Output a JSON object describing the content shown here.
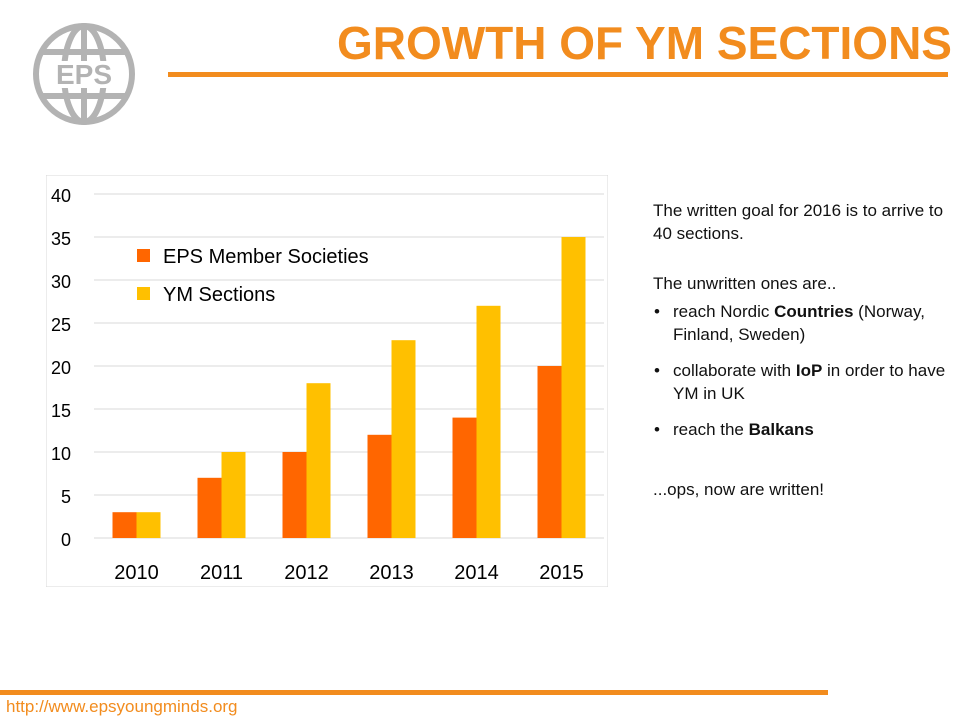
{
  "header": {
    "title": "GROWTH OF YM SECTIONS",
    "logo_text": "EPS",
    "accent_color": "#f28c1e"
  },
  "chart_data": {
    "type": "bar",
    "categories": [
      "2010",
      "2011",
      "2012",
      "2013",
      "2014",
      "2015"
    ],
    "series": [
      {
        "name": "EPS Member Societies",
        "values": [
          3,
          7,
          10,
          12,
          14,
          20
        ],
        "color": "#ff6600"
      },
      {
        "name": "YM Sections",
        "values": [
          3,
          10,
          18,
          23,
          27,
          35
        ],
        "color": "#ffc000"
      }
    ],
    "yticks": [
      "0",
      "5",
      "10",
      "15",
      "20",
      "25",
      "30",
      "35",
      "40"
    ],
    "ylim": [
      0,
      40
    ],
    "grid": true,
    "legend": "top-left"
  },
  "side_text": {
    "goal": "The written goal for 2016 is to arrive to 40 sections.",
    "unwritten": "The unwritten ones are..",
    "bullets": [
      {
        "pre": "reach Nordic ",
        "bold": "Countries",
        "post": " (Norway, Finland, Sweden)"
      },
      {
        "pre": "collaborate with ",
        "bold": "IoP",
        "post": " in order to have YM in UK"
      },
      {
        "pre": "reach the ",
        "bold": "Balkans",
        "post": ""
      }
    ],
    "written": "...ops, now are written!"
  },
  "footer": {
    "url": "http://www.epsyoungminds.org"
  }
}
